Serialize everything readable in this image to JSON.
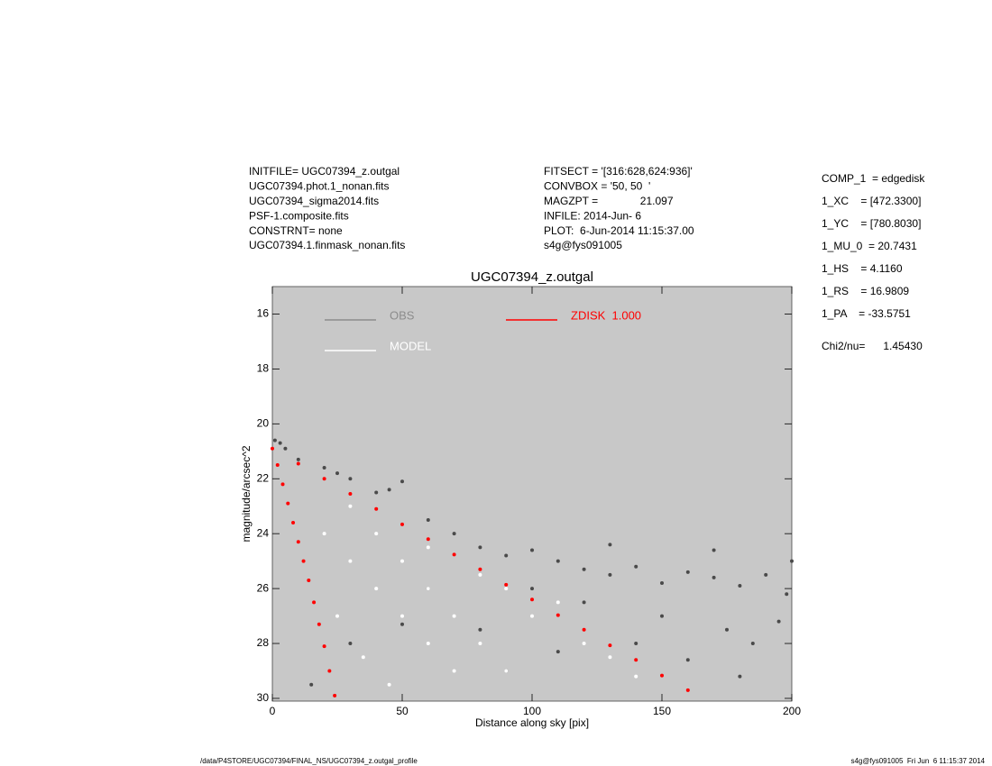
{
  "chart_data": {
    "type": "scatter",
    "title": "UGC07394_z.outgal",
    "x_label": "Distance along sky [pix]",
    "y_label": "magnitude/arcsec^2",
    "xlim": [
      0,
      200
    ],
    "ylim": [
      30.1,
      15
    ],
    "xticks": [
      0,
      50,
      100,
      150,
      200
    ],
    "yticks": [
      16,
      18,
      20,
      22,
      24,
      26,
      28,
      30
    ],
    "background": "#c8c8c8",
    "annotations": {
      "left": [
        "INITFILE= UGC07394_z.outgal",
        "UGC07394.phot.1_nonan.fits",
        "UGC07394_sigma2014.fits",
        "PSF-1.composite.fits",
        "CONSTRNT= none",
        "UGC07394.1.finmask_nonan.fits"
      ],
      "middle": [
        "FITSECT = '[316:628,624:936]'",
        "CONVBOX = '50, 50  '",
        "MAGZPT =              21.097",
        "INFILE: 2014-Jun- 6",
        "PLOT:  6-Jun-2014 11:15:37.00",
        "s4g@fys091005"
      ],
      "params": [
        "COMP_1  = edgedisk",
        "1_XC    = [472.3300]",
        "1_YC    = [780.8030]",
        "1_MU_0  = 20.7431",
        "1_HS    = 4.1160",
        "1_RS    = 16.9809",
        "1_PA    = -33.5751",
        "Chi2/nu=      1.45430"
      ],
      "footer_left": "/data/P4STORE/UGC07394/FINAL_NS/UGC07394_z.outgal_profile",
      "footer_right": "s4g@fys091005  Fri Jun  6 11:15:37 2014"
    },
    "series": [
      {
        "name": "OBS",
        "color": "#4a4a4a",
        "legend_color": "#8c8c8c",
        "x": [
          1,
          3,
          5,
          10,
          20,
          25,
          30,
          40,
          45,
          50,
          60,
          70,
          80,
          90,
          100,
          110,
          120,
          130,
          140,
          150,
          160,
          170,
          180,
          190,
          198,
          100,
          120,
          150,
          175,
          195,
          140,
          160,
          180,
          60,
          50,
          80,
          30,
          15,
          90,
          110,
          170,
          130,
          185,
          200
        ],
        "values": [
          20.6,
          20.7,
          20.9,
          21.3,
          21.6,
          21.8,
          22,
          22.5,
          22.4,
          22.1,
          23.5,
          24,
          24.5,
          24.8,
          24.6,
          25,
          25.3,
          25.5,
          25.2,
          25.8,
          25.4,
          25.6,
          25.9,
          25.5,
          26.2,
          26,
          26.5,
          27,
          27.5,
          27.2,
          28,
          28.6,
          29.2,
          26,
          27.3,
          27.5,
          28,
          29.5,
          29,
          28.3,
          24.6,
          24.4,
          28,
          25
        ]
      },
      {
        "name": "MODEL",
        "color": "#ffffff",
        "legend_color": "#ffffff",
        "x": [
          20,
          30,
          40,
          50,
          60,
          70,
          30,
          40,
          50,
          60,
          70,
          80,
          90,
          60,
          80,
          100,
          120,
          140,
          25,
          35,
          45,
          110,
          90,
          130
        ],
        "values": [
          24,
          25,
          26,
          27,
          28,
          29,
          23,
          24,
          25,
          26,
          27,
          28,
          29,
          24.5,
          25.5,
          27,
          28,
          29.2,
          27,
          28.5,
          29.5,
          26.5,
          26,
          28.5
        ]
      },
      {
        "name": "ZDISK  1.000",
        "color": "#ff0000",
        "legend_color": "#ff0000",
        "x": [
          0,
          10,
          20,
          30,
          40,
          50,
          60,
          70,
          80,
          90,
          100,
          110,
          120,
          130,
          140,
          150,
          160,
          2,
          4,
          6,
          8,
          10,
          12,
          14,
          16,
          18,
          20,
          22,
          24
        ],
        "values": [
          20.9,
          21.45,
          22,
          22.55,
          23.1,
          23.66,
          24.2,
          24.76,
          25.3,
          25.86,
          26.4,
          26.97,
          27.5,
          28.07,
          28.6,
          29.17,
          29.7,
          21.5,
          22.2,
          22.9,
          23.6,
          24.3,
          25,
          25.7,
          26.5,
          27.3,
          28.1,
          29,
          29.9
        ]
      }
    ]
  }
}
